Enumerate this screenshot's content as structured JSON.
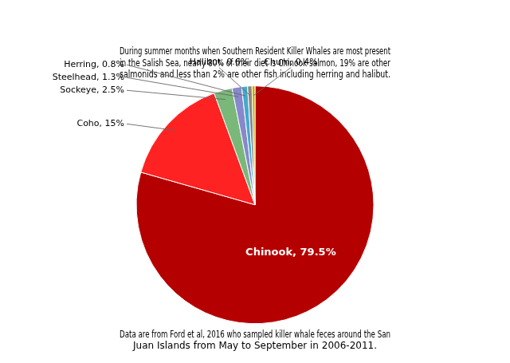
{
  "chart_data": {
    "type": "pie",
    "title": "During summer months when Southern Resident Killer Whales are most present\nin the Salish Sea, nearly 80% of their diet is Chinook salmon, 19% are other\nsalmonids and less than 2% are other fish including herring and halibut.",
    "annotations": [
      "Data are from Ford et al, 2016 who sampled killer whale feces around the San\nJuan Islands from May to September in 2006-2011."
    ],
    "categories": [
      "Chinook",
      "Coho",
      "Sockeye",
      "Steelhead",
      "Herring",
      "Halibut",
      "Chum"
    ],
    "values": [
      79.5,
      15,
      2.5,
      1.3,
      0.8,
      0.6,
      0.4
    ],
    "value_labels": [
      "Chinook, 79.5%",
      "Coho, 15%",
      "Sockeye, 2.5%",
      "Steelhead, 1.3%",
      "Herring, 0.8%",
      "Halibut, 0.6%",
      "Chum, 0.4%"
    ],
    "colors": [
      "#b50000",
      "#ff2222",
      "#7ab87a",
      "#8888cc",
      "#44aacc",
      "#888888",
      "#ccaa00"
    ],
    "data_labels": true,
    "legend": false
  }
}
